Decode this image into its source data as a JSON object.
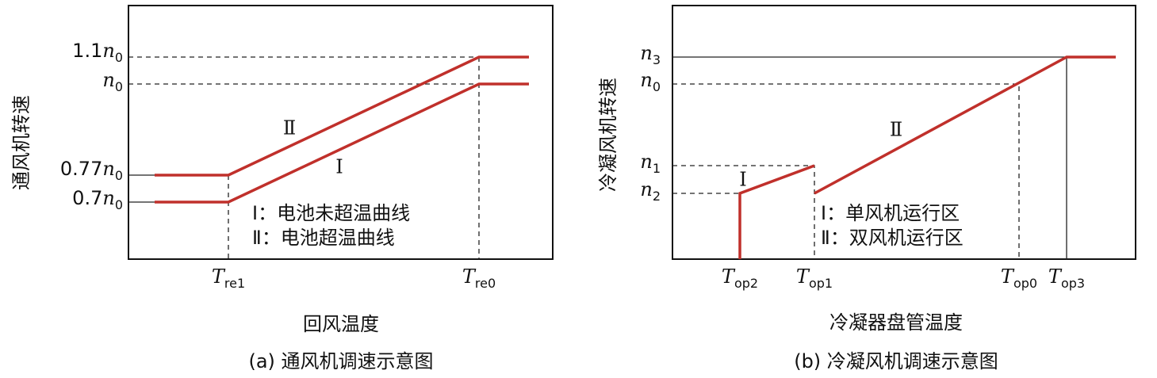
{
  "panels": [
    {
      "y_axis_label": "通风机转速",
      "y_ticks": [
        {
          "coef": "1.1",
          "symbol": "n",
          "sub": "0"
        },
        {
          "symbol": "n",
          "sub": "0"
        },
        {
          "coef": "0.77",
          "symbol": "n",
          "sub": "0"
        },
        {
          "coef": "0.7",
          "symbol": "n",
          "sub": "0"
        }
      ],
      "x_ticks": [
        {
          "symbol": "T",
          "sub": "re1"
        },
        {
          "symbol": "T",
          "sub": "re0"
        }
      ],
      "curve_labels": [
        "Ⅱ",
        "Ⅰ"
      ],
      "legend": [
        "Ⅰ：电池未超温曲线",
        "Ⅱ：电池超温曲线"
      ],
      "x_axis_label": "回风温度",
      "caption": "(a) 通风机调速示意图"
    },
    {
      "y_axis_label": "冷凝风机转速",
      "y_ticks": [
        {
          "symbol": "n",
          "sub": "3"
        },
        {
          "symbol": "n",
          "sub": "0"
        },
        {
          "symbol": "n",
          "sub": "1"
        },
        {
          "symbol": "n",
          "sub": "2"
        }
      ],
      "x_ticks": [
        {
          "symbol": "T",
          "sub": "op2"
        },
        {
          "symbol": "T",
          "sub": "op1"
        },
        {
          "symbol": "T",
          "sub": "op0"
        },
        {
          "symbol": "T",
          "sub": "op3"
        }
      ],
      "curve_labels": [
        "Ⅰ",
        "Ⅱ"
      ],
      "legend": [
        "Ⅰ：单风机运行区",
        "Ⅱ：双风机运行区"
      ],
      "x_axis_label": "冷凝器盘管温度",
      "caption": "(b) 冷凝风机调速示意图"
    }
  ]
}
